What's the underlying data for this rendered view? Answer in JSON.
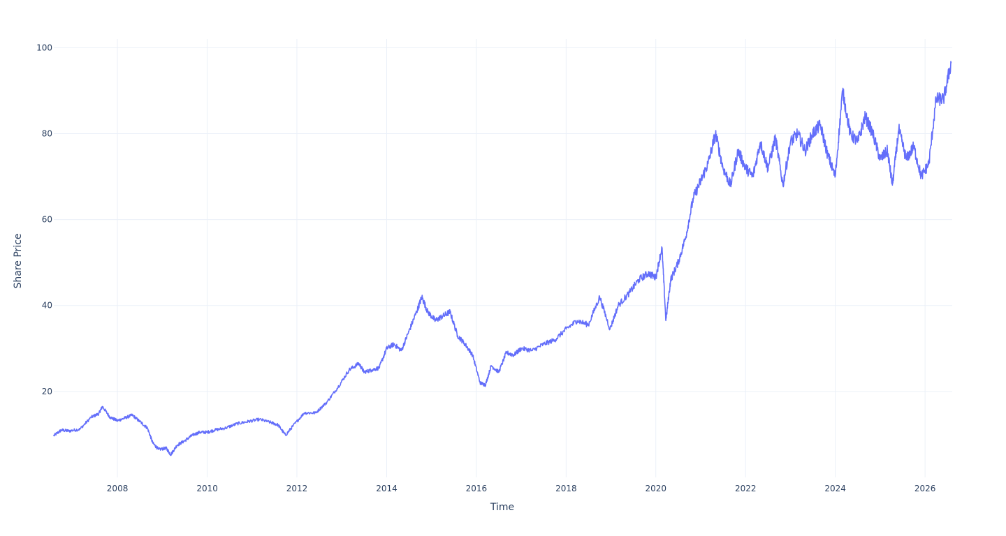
{
  "chart_data": {
    "type": "line",
    "title": "",
    "xlabel": "Time",
    "ylabel": "Share Price",
    "xlim": [
      "2006-08-01",
      "2026-08-10"
    ],
    "ylim": [
      0,
      102
    ],
    "x_ticks": [
      "2008",
      "2010",
      "2012",
      "2014",
      "2016",
      "2018",
      "2020",
      "2022",
      "2024",
      "2026"
    ],
    "y_ticks": [
      20,
      40,
      60,
      80,
      100
    ],
    "grid": true,
    "legend": "none",
    "colors": {
      "line": "#636efa",
      "grid": "#ebf0f8",
      "text": "#2a3f5f",
      "background": "#ffffff"
    },
    "series": [
      {
        "x": [
          "2006-08-01",
          "2006-10-01",
          "2006-12-01",
          "2007-03-01",
          "2007-06-01",
          "2007-08-01",
          "2007-09-01",
          "2007-11-01",
          "2008-01-01",
          "2008-03-01",
          "2008-05-01",
          "2008-07-01",
          "2008-09-01",
          "2008-10-15",
          "2008-12-01",
          "2009-02-01",
          "2009-03-10",
          "2009-05-01",
          "2009-07-01",
          "2009-09-01",
          "2009-11-01",
          "2010-01-01",
          "2010-03-01",
          "2010-06-01",
          "2010-09-01",
          "2010-12-01",
          "2011-03-01",
          "2011-06-01",
          "2011-08-01",
          "2011-10-01",
          "2011-12-01",
          "2012-03-01",
          "2012-06-01",
          "2012-09-01",
          "2012-12-01",
          "2013-03-01",
          "2013-05-20",
          "2013-07-01",
          "2013-09-01",
          "2013-11-01",
          "2014-01-01",
          "2014-03-01",
          "2014-05-01",
          "2014-07-01",
          "2014-09-01",
          "2014-10-15",
          "2014-12-01",
          "2015-02-01",
          "2015-04-01",
          "2015-06-01",
          "2015-08-01",
          "2015-10-01",
          "2015-12-01",
          "2016-02-01",
          "2016-03-15",
          "2016-05-01",
          "2016-07-01",
          "2016-09-01",
          "2016-11-01",
          "2017-01-01",
          "2017-04-01",
          "2017-07-01",
          "2017-10-01",
          "2018-01-01",
          "2018-04-01",
          "2018-07-01",
          "2018-10-01",
          "2018-12-24",
          "2019-03-01",
          "2019-06-01",
          "2019-08-15",
          "2019-11-01",
          "2020-01-01",
          "2020-02-20",
          "2020-03-23",
          "2020-05-01",
          "2020-07-01",
          "2020-09-01",
          "2020-11-01",
          "2021-01-01",
          "2021-03-01",
          "2021-05-01",
          "2021-07-01",
          "2021-09-01",
          "2021-11-01",
          "2022-01-01",
          "2022-03-01",
          "2022-05-01",
          "2022-07-01",
          "2022-09-01",
          "2022-11-01",
          "2023-01-01",
          "2023-03-01",
          "2023-05-01",
          "2023-07-01",
          "2023-09-01",
          "2023-11-01",
          "2024-01-01",
          "2024-03-01",
          "2024-05-01",
          "2024-07-01",
          "2024-09-01",
          "2024-11-01",
          "2025-01-01",
          "2025-03-01",
          "2025-04-10",
          "2025-06-01",
          "2025-08-01",
          "2025-10-01",
          "2025-12-01",
          "2026-02-01",
          "2026-04-01",
          "2026-06-01",
          "2026-08-01"
        ],
        "y": [
          9.7,
          11.0,
          10.8,
          11.2,
          14.0,
          14.8,
          16.5,
          14.0,
          13.2,
          13.8,
          14.5,
          13.0,
          11.5,
          8.0,
          6.5,
          6.8,
          5.3,
          7.5,
          8.5,
          9.8,
          10.5,
          10.5,
          11.0,
          11.5,
          12.5,
          13.0,
          13.5,
          12.8,
          12.2,
          9.8,
          12.0,
          15.0,
          15.0,
          17.5,
          21.0,
          25.0,
          26.5,
          24.5,
          25.0,
          25.5,
          30.0,
          31.0,
          29.5,
          34.0,
          38.5,
          42.0,
          38.5,
          36.5,
          37.5,
          38.5,
          33.0,
          31.0,
          28.5,
          22.0,
          21.5,
          26.0,
          24.5,
          29.0,
          28.5,
          30.0,
          29.5,
          31.0,
          32.0,
          34.5,
          36.5,
          35.5,
          42.0,
          34.5,
          40.0,
          43.0,
          46.0,
          47.5,
          46.5,
          53.5,
          36.5,
          46.0,
          50.0,
          56.0,
          65.0,
          69.0,
          73.0,
          80.0,
          72.0,
          68.0,
          76.0,
          72.0,
          70.0,
          78.0,
          72.0,
          79.0,
          68.0,
          78.0,
          80.0,
          76.0,
          80.0,
          82.0,
          75.0,
          70.0,
          90.0,
          80.0,
          78.0,
          84.0,
          80.0,
          74.0,
          76.0,
          68.0,
          81.0,
          74.0,
          77.0,
          70.0,
          73.0,
          88.0,
          88.0,
          96.5
        ]
      }
    ]
  }
}
